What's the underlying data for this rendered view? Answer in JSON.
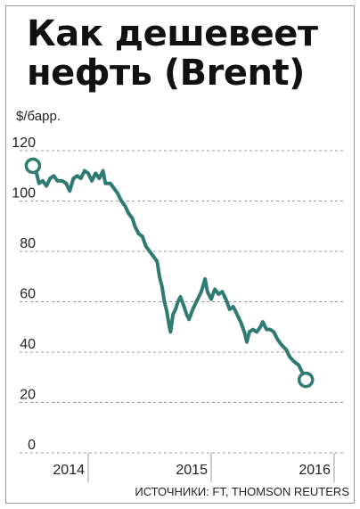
{
  "title_line1": "Как дешевеет",
  "title_line2": "нефть (Brent)",
  "unit_label": "$/барр.",
  "source": "ИСТОЧНИКИ: FT, THOMSON REUTERS",
  "colors": {
    "line": "#2f7a72",
    "grid": "#9a9a9a",
    "marker_fill": "#ffffff"
  },
  "chart_data": {
    "type": "line",
    "title": "Как дешевеет нефть (Brent)",
    "ylabel": "$/барр.",
    "ylim": [
      0,
      120
    ],
    "yticks": [
      0,
      20,
      40,
      60,
      80,
      100,
      120
    ],
    "xlim": [
      2013.5,
      2016.08
    ],
    "xticks": [
      {
        "value": 2014,
        "label": "2014"
      },
      {
        "value": 2015,
        "label": "2015"
      },
      {
        "value": 2016,
        "label": "2016"
      }
    ],
    "grid": "horizontal",
    "series": [
      {
        "points": [
          [
            2013.55,
            114
          ],
          [
            2013.58,
            111
          ],
          [
            2013.6,
            107
          ],
          [
            2013.63,
            108
          ],
          [
            2013.66,
            106
          ],
          [
            2013.69,
            109
          ],
          [
            2013.72,
            110
          ],
          [
            2013.75,
            108
          ],
          [
            2013.79,
            108
          ],
          [
            2013.82,
            107
          ],
          [
            2013.85,
            104
          ],
          [
            2013.88,
            109
          ],
          [
            2013.91,
            110
          ],
          [
            2013.94,
            109
          ],
          [
            2013.97,
            112
          ],
          [
            2014.0,
            111
          ],
          [
            2014.03,
            108
          ],
          [
            2014.06,
            111
          ],
          [
            2014.09,
            109
          ],
          [
            2014.12,
            112
          ],
          [
            2014.14,
            107
          ],
          [
            2014.18,
            107
          ],
          [
            2014.21,
            105
          ],
          [
            2014.24,
            103
          ],
          [
            2014.27,
            100
          ],
          [
            2014.3,
            98
          ],
          [
            2014.33,
            95
          ],
          [
            2014.36,
            93
          ],
          [
            2014.38,
            90
          ],
          [
            2014.41,
            87
          ],
          [
            2014.44,
            86
          ],
          [
            2014.47,
            82
          ],
          [
            2014.5,
            80
          ],
          [
            2014.53,
            78
          ],
          [
            2014.56,
            76
          ],
          [
            2014.58,
            70
          ],
          [
            2014.6,
            66
          ],
          [
            2014.62,
            60
          ],
          [
            2014.64,
            56
          ],
          [
            2014.66,
            50
          ],
          [
            2014.67,
            48
          ],
          [
            2014.69,
            55
          ],
          [
            2014.71,
            57
          ],
          [
            2014.73,
            60
          ],
          [
            2014.75,
            62
          ],
          [
            2014.78,
            58
          ],
          [
            2014.8,
            55
          ],
          [
            2014.82,
            53
          ],
          [
            2014.85,
            57
          ],
          [
            2014.88,
            60
          ],
          [
            2014.92,
            64
          ],
          [
            2014.95,
            69
          ],
          [
            2014.97,
            64
          ],
          [
            2015.0,
            61
          ],
          [
            2015.03,
            65
          ],
          [
            2015.06,
            63
          ],
          [
            2015.09,
            64
          ],
          [
            2015.12,
            61
          ],
          [
            2015.15,
            57
          ],
          [
            2015.18,
            58
          ],
          [
            2015.21,
            55
          ],
          [
            2015.24,
            52
          ],
          [
            2015.27,
            48
          ],
          [
            2015.29,
            44
          ],
          [
            2015.31,
            48
          ],
          [
            2015.34,
            49
          ],
          [
            2015.37,
            48
          ],
          [
            2015.4,
            50
          ],
          [
            2015.42,
            52
          ],
          [
            2015.45,
            49
          ],
          [
            2015.48,
            49
          ],
          [
            2015.51,
            48
          ],
          [
            2015.54,
            45
          ],
          [
            2015.57,
            43
          ],
          [
            2015.61,
            41
          ],
          [
            2015.64,
            38
          ],
          [
            2015.68,
            36
          ],
          [
            2015.71,
            35
          ],
          [
            2015.74,
            32
          ],
          [
            2015.77,
            29
          ]
        ]
      }
    ]
  }
}
